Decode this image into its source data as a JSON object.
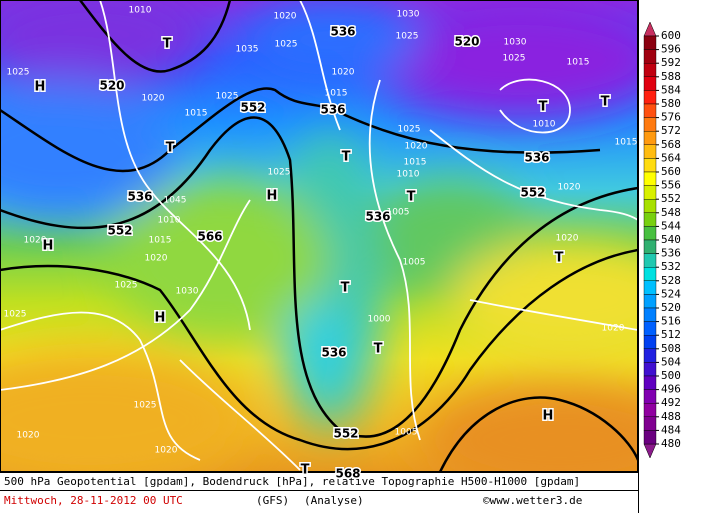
{
  "map": {
    "labels": [
      "1010",
      "1020",
      "1030",
      "536",
      "1025",
      "1035",
      "1025",
      "520",
      "1030",
      "1025",
      "1015",
      "1025",
      "1020",
      "T",
      "H",
      "520",
      "1020",
      "1025",
      "552",
      "1015",
      "536",
      "T",
      "T",
      "1010",
      "1015",
      "1025",
      "536",
      "1015",
      "T",
      "T",
      "1020",
      "1015",
      "1010",
      "1025",
      "H",
      "536",
      "1045",
      "552",
      "1020",
      "T",
      "536",
      "1005",
      "1010",
      "552",
      "1015",
      "566",
      "1020",
      "H",
      "1020",
      "1020",
      "T",
      "1005",
      "1025",
      "T",
      "1030",
      "1025",
      "H",
      "1000",
      "1020",
      "T",
      "536",
      "1025",
      "H",
      "1020",
      "1005",
      "552",
      "1020",
      "T",
      "568"
    ]
  },
  "colorbar": {
    "ticks": [
      600,
      596,
      592,
      588,
      584,
      580,
      576,
      572,
      568,
      564,
      560,
      556,
      552,
      548,
      544,
      540,
      536,
      532,
      528,
      524,
      520,
      516,
      512,
      508,
      504,
      500,
      496,
      492,
      488,
      484,
      480
    ],
    "colors": [
      "#8b0010",
      "#a00010",
      "#c00010",
      "#e00010",
      "#ff2010",
      "#ff5010",
      "#ff7a10",
      "#ff9a10",
      "#ffbc10",
      "#ffdc10",
      "#ffff00",
      "#d8f000",
      "#a8e000",
      "#78d010",
      "#48c040",
      "#30b070",
      "#20c8b0",
      "#00e0e0",
      "#00c0ff",
      "#00a0ff",
      "#0080ff",
      "#0060ff",
      "#0040f0",
      "#2020e0",
      "#4010d0",
      "#6000c0",
      "#8000b0",
      "#9000a0",
      "#800090",
      "#6a0080"
    ],
    "top_color": "#c83060",
    "bottom_color": "#8a1a8a"
  },
  "footer": {
    "line1": "500 hPa Geopotential [gpdam], Bodendruck [hPa], relative Topographie H500-H1000 [gpdam]",
    "date": "Mittwoch, 28-11-2012  00 UTC",
    "model": "(GFS)",
    "run": "(Analyse)",
    "credit": "©www.wetter3.de"
  }
}
